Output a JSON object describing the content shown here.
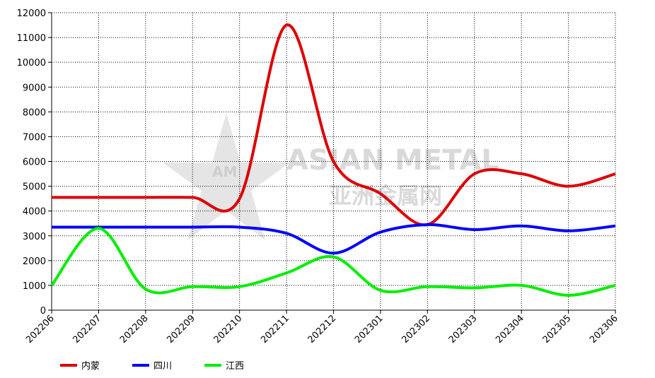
{
  "chart_data": {
    "type": "line",
    "watermark": {
      "title": "ASIAN METAL",
      "subtitle": "亚洲金属网",
      "logo": "AM"
    },
    "categories": [
      "202206",
      "202207",
      "202208",
      "202209",
      "202210",
      "202211",
      "202212",
      "202301",
      "202302",
      "202303",
      "202304",
      "202305",
      "202306"
    ],
    "series": [
      {
        "name": "内蒙",
        "color": "#dd0000",
        "values": [
          4550,
          4550,
          4550,
          4550,
          4500,
          11500,
          6000,
          4700,
          3450,
          5500,
          5500,
          5000,
          5500
        ]
      },
      {
        "name": "四川",
        "color": "#0000ff",
        "values": [
          3350,
          3350,
          3350,
          3350,
          3350,
          3100,
          2300,
          3150,
          3450,
          3250,
          3400,
          3200,
          3400
        ]
      },
      {
        "name": "江西",
        "color": "#00ee00",
        "values": [
          1000,
          3300,
          850,
          950,
          950,
          1500,
          2150,
          800,
          950,
          900,
          1000,
          600,
          1000
        ]
      }
    ],
    "ylim": [
      0,
      12000
    ],
    "yticks": [
      0,
      1000,
      2000,
      3000,
      4000,
      5000,
      6000,
      7000,
      8000,
      9000,
      10000,
      11000,
      12000
    ],
    "grid": true,
    "legend": "bottom-left"
  }
}
